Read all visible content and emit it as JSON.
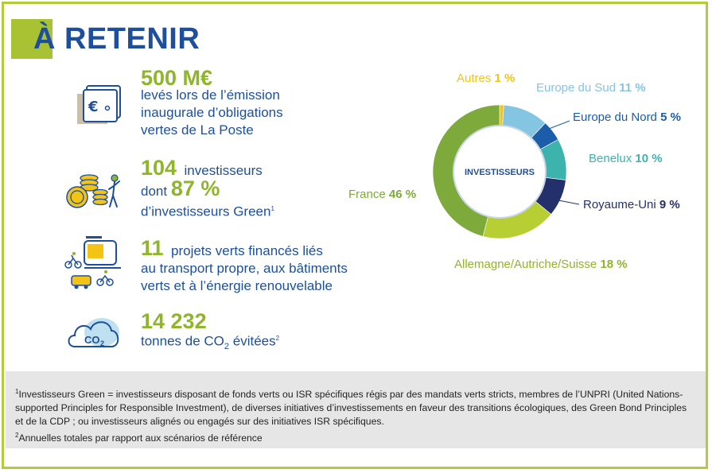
{
  "title": "À RETENIR",
  "stats": [
    {
      "number": "500 M€",
      "lines": [
        "levés lors de l’émission",
        "inaugurale d’obligations",
        "vertes de La Poste"
      ]
    },
    {
      "number": "104",
      "text1": "investisseurs",
      "text2": "dont",
      "number2": "87 %",
      "text3": "d’investisseurs Green",
      "sup": "1"
    },
    {
      "number": "11",
      "text1": "projets verts financés liés",
      "lines": [
        "au transport propre, aux bâtiments",
        "verts et à l’énergie renouvelable"
      ]
    },
    {
      "number": "14 232",
      "text1": "tonnes de CO",
      "sub": "2",
      "text2": "évitées",
      "sup": "2"
    }
  ],
  "chart_data": {
    "type": "pie",
    "center_label": "INVESTISSEURS",
    "slices": [
      {
        "label": "Autres",
        "value": 1,
        "value_label": "1 %",
        "color": "#f3c316"
      },
      {
        "label": "Europe du Sud",
        "value": 11,
        "value_label": "11 %",
        "color": "#84c5e2"
      },
      {
        "label": "Europe du Nord",
        "value": 5,
        "value_label": "5 %",
        "color": "#1b5da8"
      },
      {
        "label": "Benelux",
        "value": 10,
        "value_label": "10 %",
        "color": "#3db3ad"
      },
      {
        "label": "Royaume-Uni",
        "value": 9,
        "value_label": "9 %",
        "color": "#24306b"
      },
      {
        "label": "Allemagne/Autriche/Suisse",
        "value": 18,
        "value_label": "18 %",
        "color": "#b7cf32"
      },
      {
        "label": "France",
        "value": 46,
        "value_label": "46 %",
        "color": "#7eaa3b"
      }
    ]
  },
  "footnotes": {
    "n1_mark": "1",
    "n1": "Investisseurs Green = investisseurs disposant de fonds verts ou ISR spécifiques régis par des mandats verts stricts, membres de l’UNPRI (United Nations-supported Principles for Responsible Investment), de diverses initiatives d’investissements en faveur des transitions écologiques, des Green Bond Principles et de la CDP ; ou investisseurs alignés ou engagés sur des initiatives ISR spécifiques.",
    "n2_mark": "2",
    "n2": "Annuelles totales par rapport aux scénarios de référence"
  },
  "icons": [
    "euro-notes-icon",
    "coins-investor-icon",
    "transport-icon",
    "co2-cloud-icon"
  ],
  "colors": {
    "blue": "#1d4f9c",
    "green": "#8fb52a",
    "border": "#b5cc3a"
  }
}
